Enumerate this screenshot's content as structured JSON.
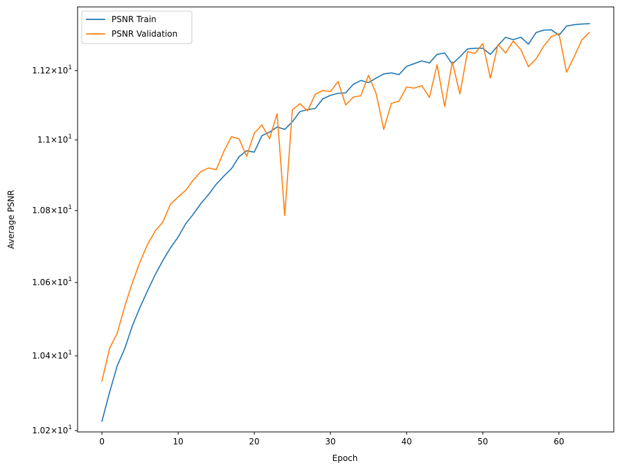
{
  "chart_data": {
    "type": "line",
    "title": "",
    "xlabel": "Epoch",
    "ylabel": "Average PSNR",
    "yscale": "log",
    "xlim": [
      -3.2,
      67.2
    ],
    "ylim": [
      10.1965,
      11.3865
    ],
    "grid": false,
    "legend_position": "top-left",
    "x_ticks": [
      0,
      10,
      20,
      30,
      40,
      50,
      60
    ],
    "x_tick_labels": [
      "0",
      "10",
      "20",
      "30",
      "40",
      "50",
      "60"
    ],
    "y_ticks": [
      10.2,
      10.4,
      10.6,
      10.8,
      11.0,
      11.2
    ],
    "y_tick_mantissas": [
      "1.02",
      "1.04",
      "1.06",
      "1.08",
      "1.1",
      "1.12"
    ],
    "y_tick_times": "×10",
    "y_tick_exponent": "1",
    "series": [
      {
        "name": "PSNR Train",
        "color": "#1f77b4",
        "x": [
          0,
          1,
          2,
          3,
          4,
          5,
          6,
          7,
          8,
          9,
          10,
          11,
          12,
          13,
          14,
          15,
          16,
          17,
          18,
          19,
          20,
          21,
          22,
          23,
          24,
          25,
          26,
          27,
          28,
          29,
          30,
          31,
          32,
          33,
          34,
          35,
          36,
          37,
          38,
          39,
          40,
          41,
          42,
          43,
          44,
          45,
          46,
          47,
          48,
          49,
          50,
          51,
          52,
          53,
          54,
          55,
          56,
          57,
          58,
          59,
          60,
          61,
          62,
          63,
          64
        ],
        "values": [
          10.225,
          10.302,
          10.373,
          10.42,
          10.482,
          10.532,
          10.578,
          10.622,
          10.661,
          10.696,
          10.726,
          10.763,
          10.79,
          10.82,
          10.845,
          10.874,
          10.897,
          10.918,
          10.952,
          10.969,
          10.965,
          11.012,
          11.022,
          11.037,
          11.03,
          11.052,
          11.081,
          11.087,
          11.09,
          11.118,
          11.128,
          11.134,
          11.135,
          11.16,
          11.171,
          11.165,
          11.178,
          11.19,
          11.193,
          11.188,
          11.212,
          11.22,
          11.228,
          11.222,
          11.247,
          11.251,
          11.219,
          11.24,
          11.263,
          11.265,
          11.265,
          11.247,
          11.273,
          11.297,
          11.29,
          11.297,
          11.277,
          11.311,
          11.318,
          11.319,
          11.303,
          11.33,
          11.334,
          11.336,
          11.337
        ]
      },
      {
        "name": "PSNR Validation",
        "color": "#ff7f0e",
        "x": [
          0,
          1,
          2,
          3,
          4,
          5,
          6,
          7,
          8,
          9,
          10,
          11,
          12,
          13,
          14,
          15,
          16,
          17,
          18,
          19,
          20,
          21,
          22,
          23,
          24,
          25,
          26,
          27,
          28,
          29,
          30,
          31,
          32,
          33,
          34,
          35,
          36,
          37,
          38,
          39,
          40,
          41,
          42,
          43,
          44,
          45,
          46,
          47,
          48,
          49,
          50,
          51,
          52,
          53,
          54,
          55,
          56,
          57,
          58,
          59,
          60,
          61,
          62,
          63,
          64
        ],
        "values": [
          10.332,
          10.42,
          10.461,
          10.535,
          10.6,
          10.657,
          10.706,
          10.743,
          10.768,
          10.818,
          10.838,
          10.857,
          10.886,
          10.91,
          10.92,
          10.915,
          10.967,
          11.009,
          11.003,
          10.953,
          11.019,
          11.043,
          11.003,
          11.075,
          10.786,
          11.086,
          11.104,
          11.083,
          11.131,
          11.142,
          11.139,
          11.168,
          11.1,
          11.123,
          11.127,
          11.186,
          11.133,
          11.03,
          11.105,
          11.111,
          11.152,
          11.149,
          11.156,
          11.122,
          11.217,
          11.096,
          11.225,
          11.132,
          11.255,
          11.25,
          11.279,
          11.178,
          11.276,
          11.251,
          11.286,
          11.261,
          11.211,
          11.234,
          11.271,
          11.299,
          11.308,
          11.195,
          11.24,
          11.289,
          11.311
        ]
      }
    ]
  }
}
